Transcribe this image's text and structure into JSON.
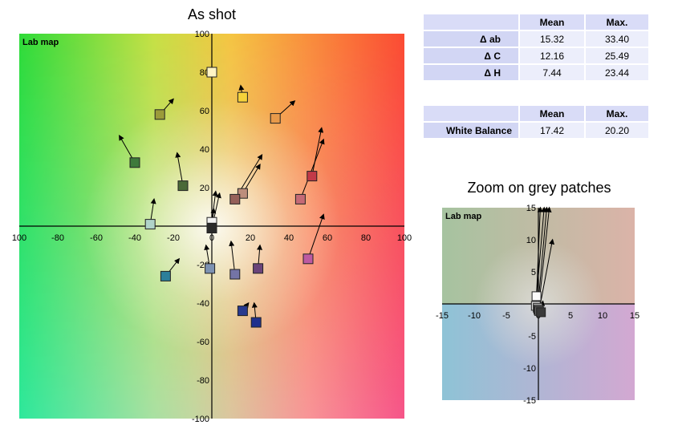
{
  "main_chart": {
    "title": "As shot",
    "map_label": "Lab map",
    "x_ticks": [
      "100",
      "-80",
      "-60",
      "-40",
      "-20",
      "0",
      "20",
      "40",
      "60",
      "80",
      "100"
    ],
    "y_ticks": [
      "100",
      "80",
      "60",
      "40",
      "20",
      "-20",
      "-40",
      "-60",
      "-80",
      "-100"
    ]
  },
  "zoom_chart": {
    "title": "Zoom on grey patches",
    "map_label": "Lab map",
    "x_ticks": [
      "-15",
      "-10",
      "-5",
      "0",
      "5",
      "10",
      "15"
    ],
    "y_ticks": [
      "15",
      "10",
      "5",
      "-5",
      "-10",
      "-15"
    ]
  },
  "delta_table": {
    "headers": [
      "",
      "Mean",
      "Max."
    ],
    "rows": [
      {
        "label": "Δ ab",
        "mean": "15.32",
        "max": "33.40"
      },
      {
        "label": "Δ C",
        "mean": "12.16",
        "max": "25.49"
      },
      {
        "label": "Δ H",
        "mean": "7.44",
        "max": "23.44"
      }
    ]
  },
  "wb_table": {
    "headers": [
      "",
      "Mean",
      "Max."
    ],
    "rows": [
      {
        "label": "White Balance",
        "mean": "17.42",
        "max": "20.20"
      }
    ]
  },
  "chart_data": [
    {
      "type": "scatter",
      "title": "As shot",
      "xlim": [
        -100,
        100
      ],
      "ylim": [
        -100,
        100
      ],
      "grid": false,
      "points": [
        {
          "a": 0,
          "b": 80,
          "to_a": 0,
          "to_b": 80,
          "color": "#fff4c4"
        },
        {
          "a": 16,
          "b": 67,
          "to_a": 15,
          "to_b": 73,
          "color": "#f6d23a"
        },
        {
          "a": 33,
          "b": 56,
          "to_a": 43,
          "to_b": 65,
          "color": "#e89a4a"
        },
        {
          "a": -27,
          "b": 58,
          "to_a": -20,
          "to_b": 66,
          "color": "#9b9b3a"
        },
        {
          "a": -40,
          "b": 33,
          "to_a": -48,
          "to_b": 47,
          "color": "#3f7a3c"
        },
        {
          "a": -15,
          "b": 21,
          "to_a": -18,
          "to_b": 38,
          "color": "#4b6a38"
        },
        {
          "a": -32,
          "b": 1,
          "to_a": -30,
          "to_b": 14,
          "color": "#b0d3c9"
        },
        {
          "a": 16,
          "b": 17,
          "to_a": 25,
          "to_b": 32,
          "color": "#bc8e7c"
        },
        {
          "a": 12,
          "b": 14,
          "to_a": 26,
          "to_b": 37,
          "color": "#96615a"
        },
        {
          "a": 52,
          "b": 26,
          "to_a": 57,
          "to_b": 51,
          "color": "#c23a48"
        },
        {
          "a": 46,
          "b": 14,
          "to_a": 58,
          "to_b": 45,
          "color": "#c56a76"
        },
        {
          "a": 50,
          "b": -17,
          "to_a": 58,
          "to_b": 6,
          "color": "#bd5aa2"
        },
        {
          "a": 0,
          "b": 2,
          "to_a": 2,
          "to_b": 18,
          "color": "#f2f2f2"
        },
        {
          "a": 0,
          "b": -1,
          "to_a": 4,
          "to_b": 17,
          "color": "#888888"
        },
        {
          "a": 0,
          "b": -1,
          "to_a": 1,
          "to_b": 9,
          "color": "#2a2a2a"
        },
        {
          "a": -1,
          "b": -22,
          "to_a": -3,
          "to_b": -10,
          "color": "#7d92b2"
        },
        {
          "a": 12,
          "b": -25,
          "to_a": 10,
          "to_b": -8,
          "color": "#7474a6"
        },
        {
          "a": 24,
          "b": -22,
          "to_a": 25,
          "to_b": -10,
          "color": "#6b447a"
        },
        {
          "a": -24,
          "b": -26,
          "to_a": -17,
          "to_b": -17,
          "color": "#2c7f9a"
        },
        {
          "a": 16,
          "b": -44,
          "to_a": 19,
          "to_b": -40,
          "color": "#283a8e"
        },
        {
          "a": 23,
          "b": -50,
          "to_a": 22,
          "to_b": -40,
          "color": "#20308d"
        }
      ]
    },
    {
      "type": "scatter",
      "title": "Zoom on grey patches",
      "xlim": [
        -15,
        15
      ],
      "ylim": [
        -15,
        15
      ],
      "grid": false,
      "points": [
        {
          "a": -0.3,
          "b": 1.2,
          "to_a": 0.3,
          "to_b": 18,
          "color": "#fafafa"
        },
        {
          "a": -0.4,
          "b": -0.3,
          "to_a": 0.9,
          "to_b": 18,
          "color": "#dcdcdc"
        },
        {
          "a": -0.1,
          "b": -0.6,
          "to_a": 1.3,
          "to_b": 18,
          "color": "#b4b4b4"
        },
        {
          "a": 0.0,
          "b": -0.9,
          "to_a": 1.7,
          "to_b": 18,
          "color": "#8c8c8c"
        },
        {
          "a": 0.1,
          "b": -1.1,
          "to_a": 2.2,
          "to_b": 10,
          "color": "#5f5f5f"
        },
        {
          "a": 0.4,
          "b": -1.3,
          "to_a": 0.7,
          "to_b": 0.4,
          "color": "#3a3a3a"
        }
      ]
    }
  ]
}
